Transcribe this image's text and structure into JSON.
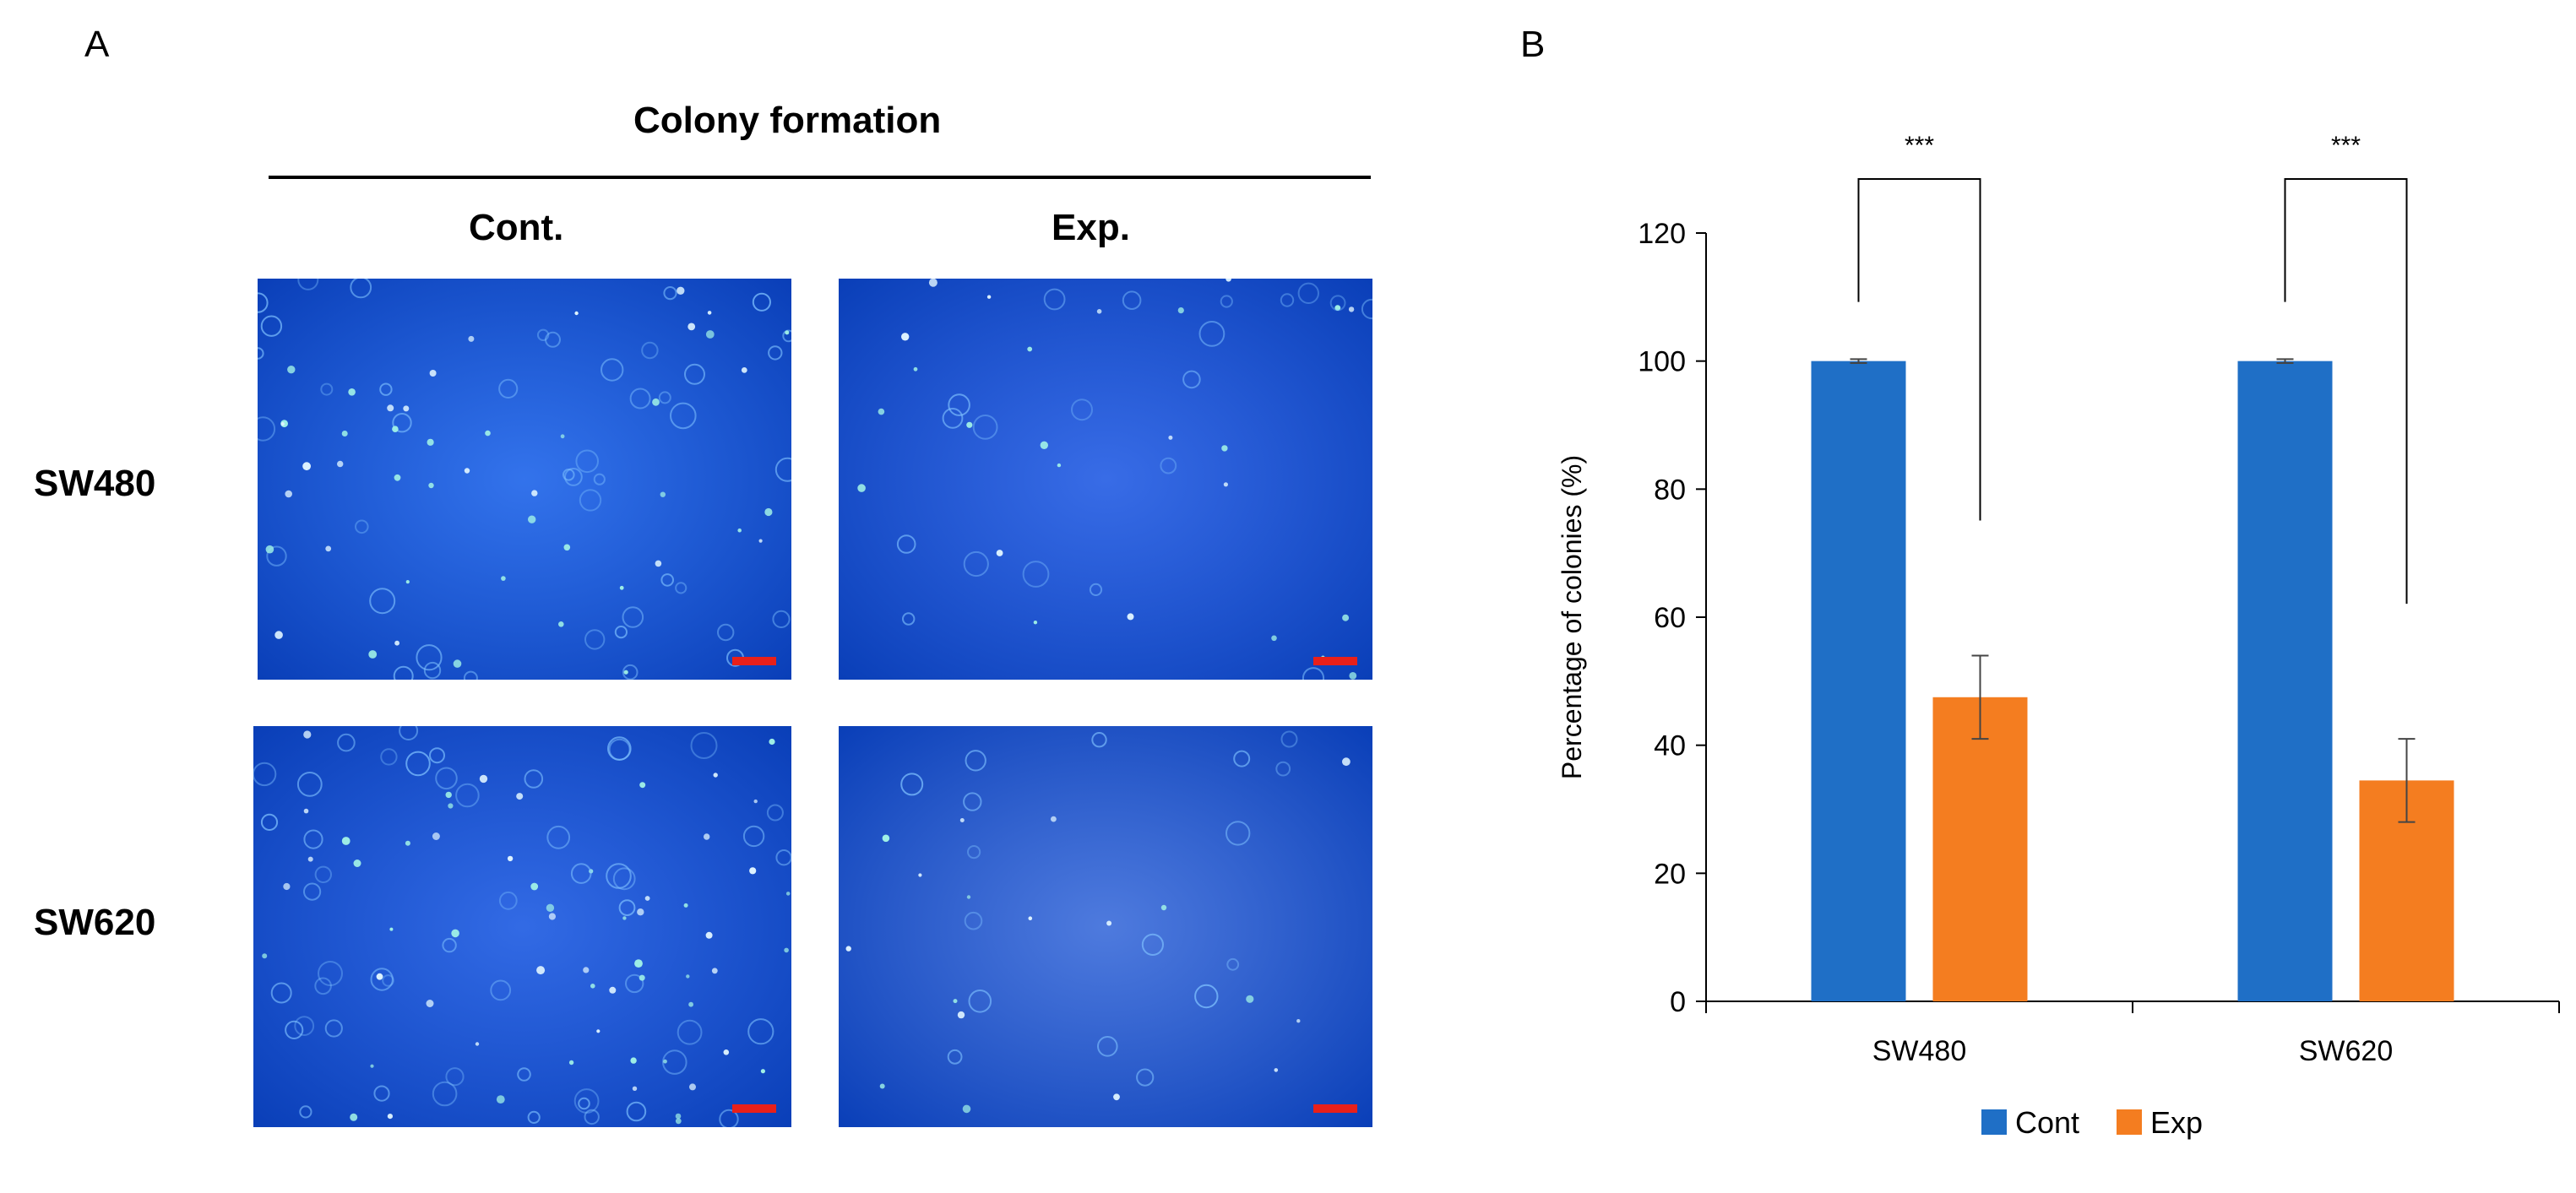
{
  "panel_a": {
    "letter": "A",
    "title": "Colony formation",
    "columns": [
      "Cont.",
      "Exp."
    ],
    "rows": [
      "SW480",
      "SW620"
    ],
    "image_bg_colors": [
      "#0f5ae8",
      "#1552e2",
      "#0e50e0",
      "#2f63d8"
    ],
    "scale_bar_color": "#e8201a"
  },
  "panel_b": {
    "letter": "B"
  },
  "chart_data": {
    "type": "bar",
    "categories": [
      "SW480",
      "SW620"
    ],
    "series": [
      {
        "name": "Cont",
        "color": "#1f6fc6",
        "values": [
          100,
          100
        ],
        "errors": [
          0.3,
          0.3
        ]
      },
      {
        "name": "Exp",
        "color": "#f47d20",
        "values": [
          47.5,
          34.5
        ],
        "errors": [
          6.5,
          6.5
        ]
      }
    ],
    "ylabel": "Percentage of colonies  (%)",
    "xlabel": "",
    "ylim": [
      0,
      120
    ],
    "yticks": [
      0,
      20,
      40,
      60,
      80,
      100,
      120
    ],
    "grid": false,
    "legend_position": "bottom-center",
    "significance": [
      {
        "category": "SW480",
        "label": "***"
      },
      {
        "category": "SW620",
        "label": "***"
      }
    ]
  }
}
